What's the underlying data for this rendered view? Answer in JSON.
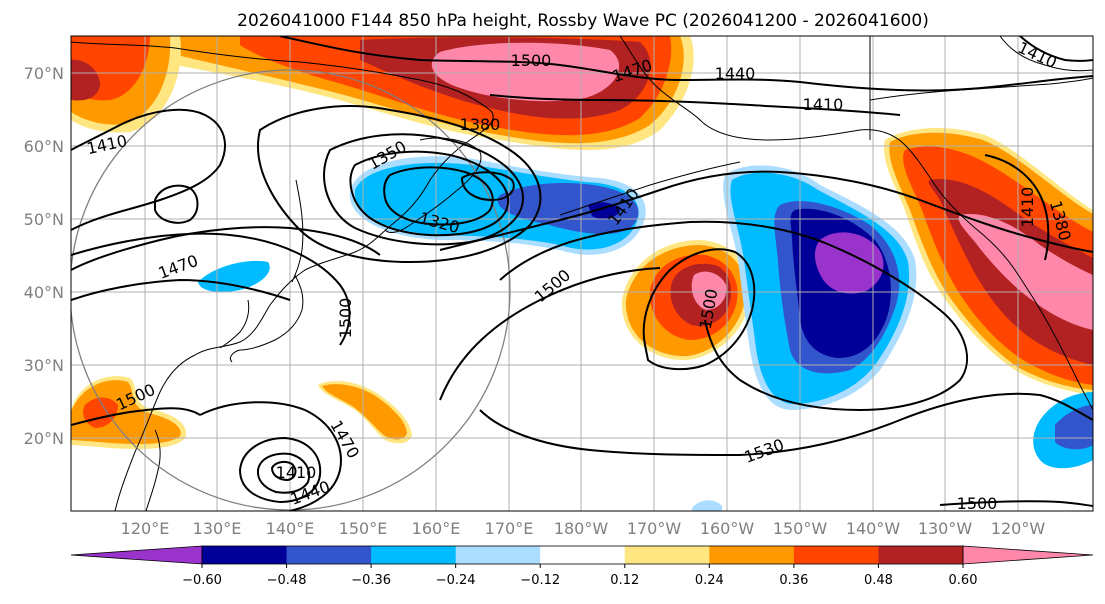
{
  "title": "2026041000 F144 850 hPa height, Rossby Wave PC (2026041200 - 2026041600)",
  "lat_labels": [
    "70°N",
    "60°N",
    "50°N",
    "40°N",
    "30°N",
    "20°N"
  ],
  "lon_labels": [
    "120°E",
    "130°E",
    "140°E",
    "150°E",
    "160°E",
    "170°E",
    "180°W",
    "170°W",
    "160°W",
    "150°W",
    "140°W",
    "130°W",
    "120°W"
  ],
  "contour_labels": [
    "1500",
    "1470",
    "1440",
    "1410",
    "1410",
    "1410",
    "1380",
    "1350",
    "1320",
    "1410",
    "1470",
    "1500",
    "1500",
    "1500",
    "1500",
    "1530",
    "1470",
    "1410",
    "1440",
    "1500",
    "1410",
    "1380"
  ],
  "colorbar": {
    "colors": [
      "#9933cc",
      "#000099",
      "#3355cc",
      "#00bbff",
      "#aaddff",
      "#ffffff",
      "#ffe680",
      "#ff9900",
      "#ff4500",
      "#b22222",
      "#ff88aa"
    ],
    "ticks": [
      "−0.60",
      "−0.48",
      "−0.36",
      "−0.24",
      "−0.12",
      "0.12",
      "0.24",
      "0.36",
      "0.48",
      "0.60"
    ]
  }
}
